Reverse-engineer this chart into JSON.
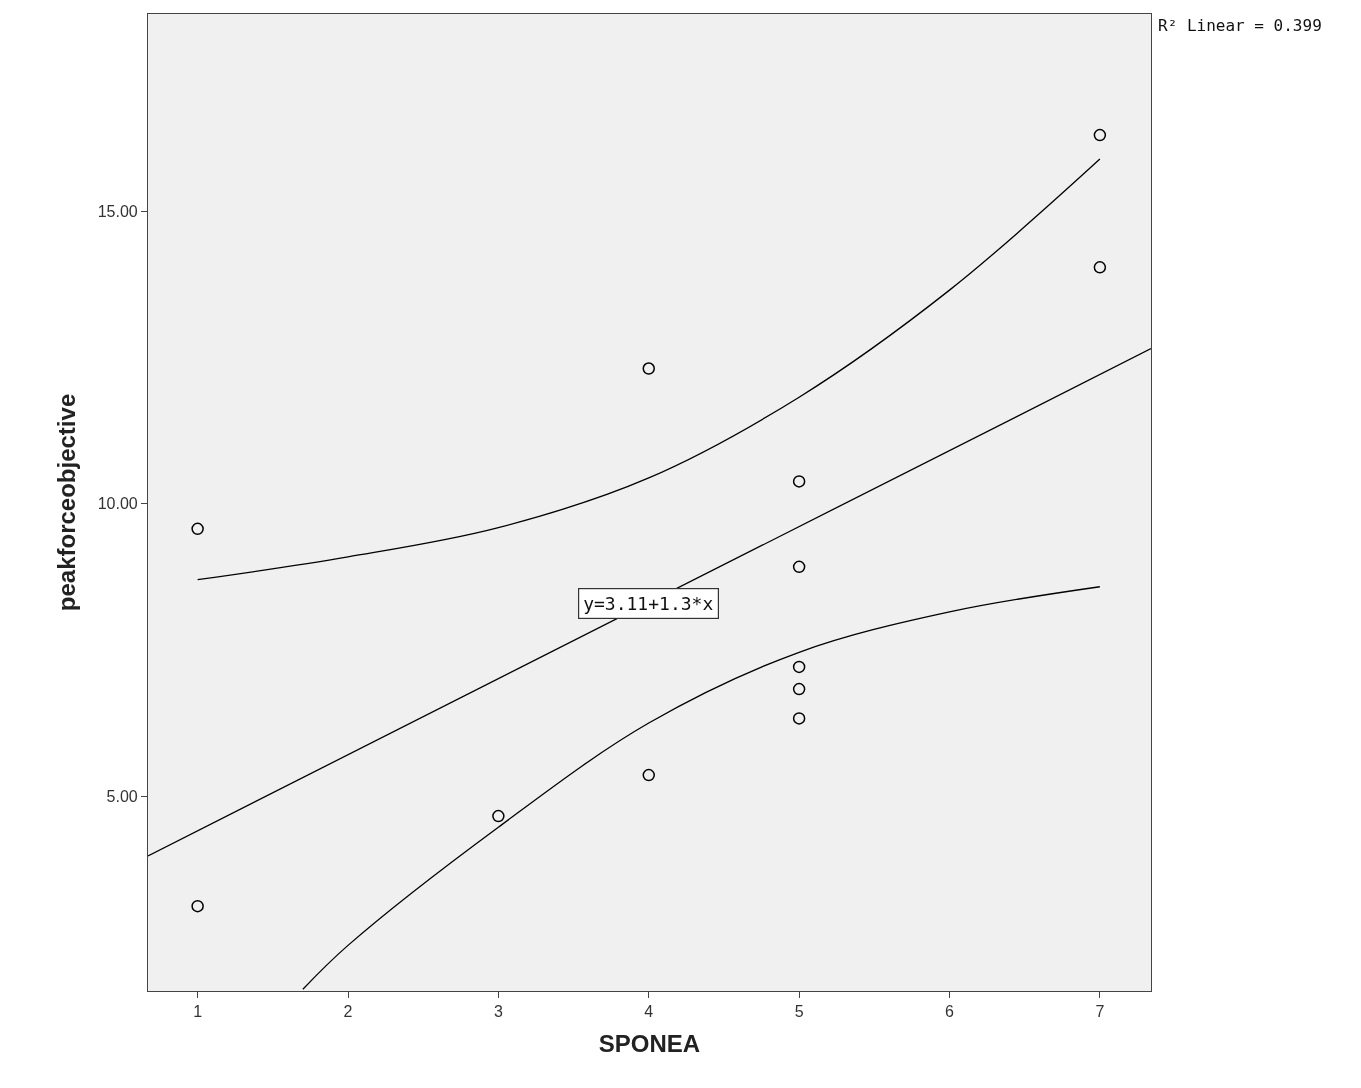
{
  "chart_data": {
    "type": "scatter",
    "xlabel": "SPONEA",
    "ylabel": "peakforceobjective",
    "x": [
      1,
      1,
      3,
      4,
      4,
      5,
      5,
      5,
      5,
      5,
      7,
      7
    ],
    "series": [
      {
        "color": "#000000",
        "marker": "circle",
        "values": [
          9.57,
          3.12,
          4.66,
          12.31,
          5.36,
          10.38,
          8.92,
          7.21,
          6.83,
          6.33,
          16.3,
          14.04
        ]
      },
      {
        "type": "line",
        "color": "#000000",
        "x": [
          0.67,
          7.34
        ],
        "values": [
          3.98,
          12.65
        ]
      },
      {
        "type": "line",
        "color": "#000000",
        "x": [
          1,
          2,
          3,
          4,
          5,
          6,
          7
        ],
        "values": [
          8.7,
          9.09,
          9.59,
          10.44,
          11.82,
          13.65,
          15.89
        ]
      },
      {
        "type": "line",
        "color": "#000000",
        "x": [
          1.7,
          2,
          3,
          4,
          5,
          6,
          7
        ],
        "values": [
          1.7,
          2.45,
          4.47,
          6.25,
          7.46,
          8.15,
          8.58
        ]
      }
    ],
    "xlim": [
      0.67,
      7.34
    ],
    "ylim": [
      1.67,
      18.37
    ],
    "xticks": [
      1,
      2,
      3,
      4,
      5,
      6,
      7
    ],
    "yticks": [
      {
        "value": 5,
        "label": "5.00"
      },
      {
        "value": 10,
        "label": "10.00"
      },
      {
        "value": 15,
        "label": "15.00"
      }
    ],
    "grid": false,
    "annotations": [
      "R² Linear = 0.399",
      {
        "text": "y=3.11+1.3*x",
        "x": 4,
        "y": 8.29
      }
    ]
  }
}
